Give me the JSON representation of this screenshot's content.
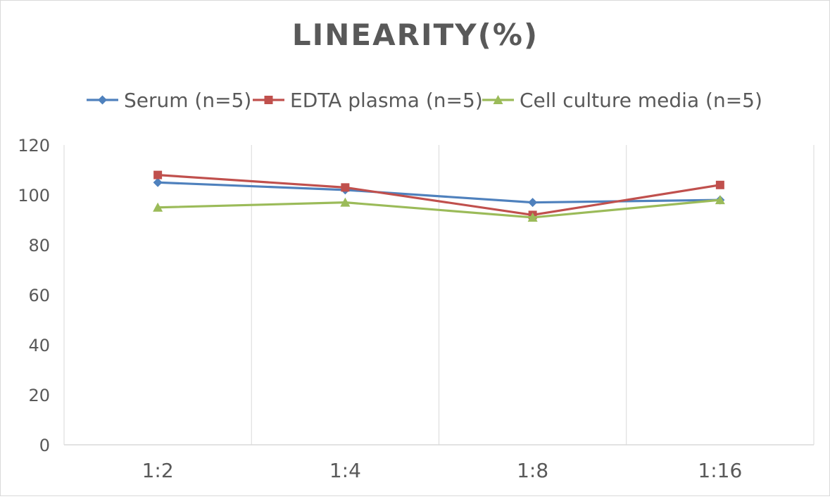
{
  "chart_data": {
    "type": "line",
    "title": "LINEARITY(%)",
    "xlabel": "",
    "ylabel": "",
    "categories": [
      "1:2",
      "1:4",
      "1:8",
      "1:16"
    ],
    "ylim": [
      0,
      120
    ],
    "yticks": [
      0,
      20,
      40,
      60,
      80,
      100,
      120
    ],
    "grid": "vertical",
    "legend": "top",
    "series": [
      {
        "name": "Serum (n=5)",
        "values": [
          105,
          102,
          97,
          98
        ],
        "color": "#4F81BD",
        "marker": "diamond"
      },
      {
        "name": "EDTA plasma (n=5)",
        "values": [
          108,
          103,
          92,
          104
        ],
        "color": "#C0504D",
        "marker": "square"
      },
      {
        "name": "Cell culture media (n=5)",
        "values": [
          95,
          97,
          91,
          98
        ],
        "color": "#9BBB59",
        "marker": "triangle"
      }
    ]
  }
}
